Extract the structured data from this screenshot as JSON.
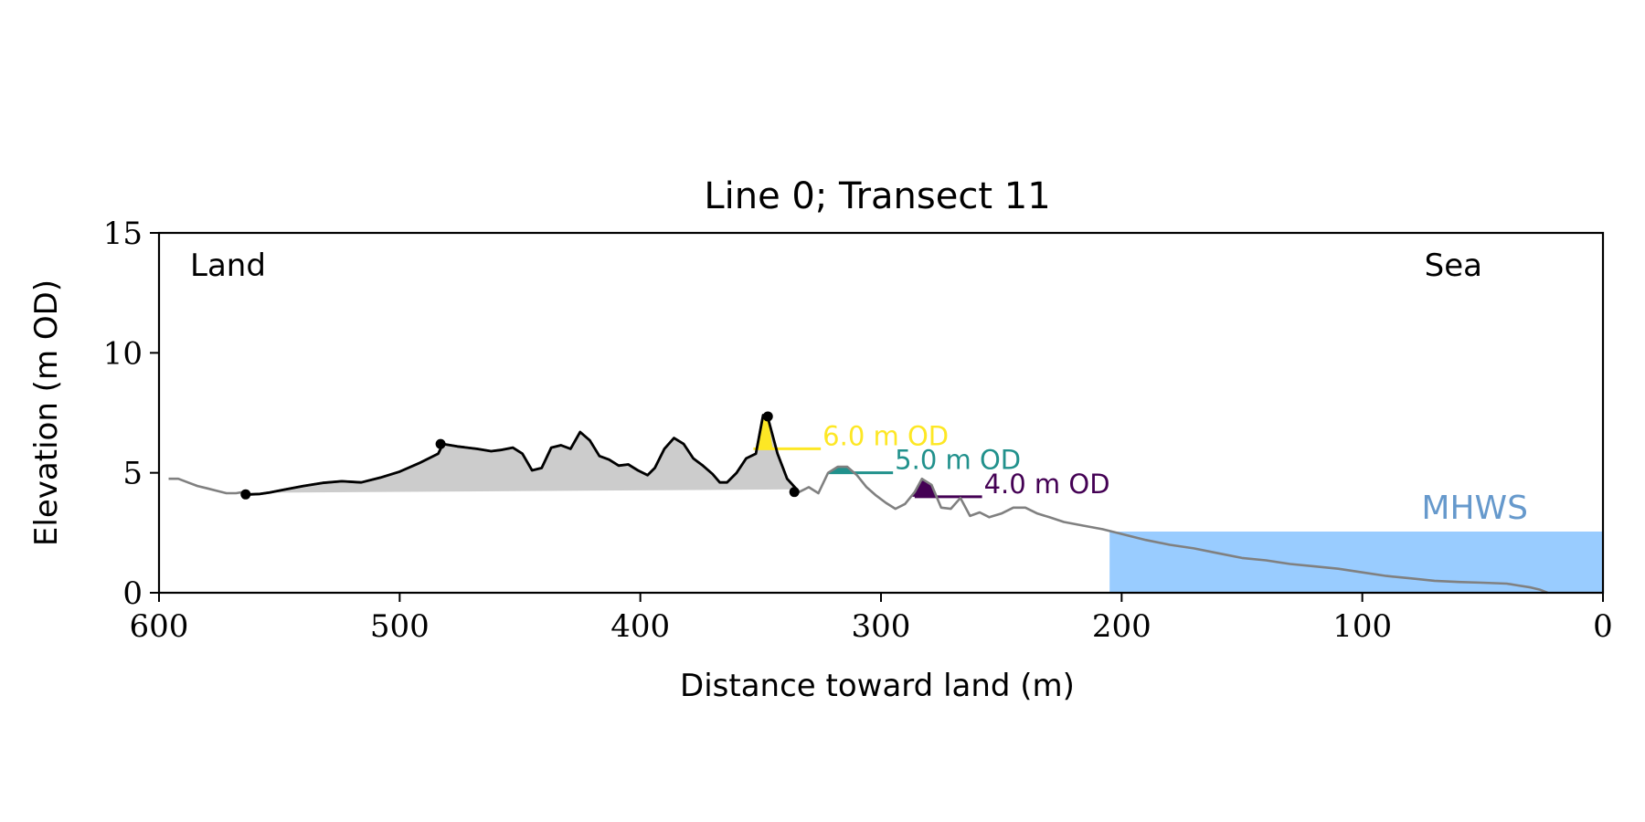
{
  "chart_data": {
    "type": "area",
    "title": "Line 0; Transect 11",
    "xlabel": "Distance toward land (m)",
    "ylabel": "Elevation (m OD)",
    "xlim": [
      600,
      0
    ],
    "ylim": [
      0,
      15
    ],
    "x_reversed": true,
    "xticks": [
      600,
      500,
      400,
      300,
      200,
      100,
      0
    ],
    "yticks": [
      0,
      5,
      10,
      15
    ],
    "grid": false,
    "corner_labels": {
      "left": "Land",
      "right": "Sea"
    },
    "mhws": {
      "label": "MHWS",
      "elevation": 2.55,
      "x_from": 205,
      "x_to": 0,
      "color": "#99ccff",
      "label_color": "#6699cc"
    },
    "profile": {
      "color": "#808080",
      "points": [
        [
          596,
          4.75
        ],
        [
          592,
          4.75
        ],
        [
          588,
          4.6
        ],
        [
          584,
          4.45
        ],
        [
          580,
          4.35
        ],
        [
          576,
          4.25
        ],
        [
          572,
          4.15
        ],
        [
          568,
          4.15
        ],
        [
          565,
          4.2
        ],
        [
          562,
          4.1
        ],
        [
          558,
          4.12
        ],
        [
          554,
          4.18
        ],
        [
          548,
          4.3
        ],
        [
          540,
          4.45
        ],
        [
          532,
          4.58
        ],
        [
          524,
          4.65
        ],
        [
          516,
          4.6
        ],
        [
          508,
          4.8
        ],
        [
          500,
          5.05
        ],
        [
          492,
          5.4
        ],
        [
          484,
          5.8
        ],
        [
          482,
          6.2
        ],
        [
          476,
          6.1
        ],
        [
          468,
          6.0
        ],
        [
          462,
          5.9
        ],
        [
          458,
          5.95
        ],
        [
          453,
          6.05
        ],
        [
          449,
          5.8
        ],
        [
          445,
          5.1
        ],
        [
          441,
          5.2
        ],
        [
          437,
          6.05
        ],
        [
          433,
          6.15
        ],
        [
          429,
          6.0
        ],
        [
          425,
          6.7
        ],
        [
          421,
          6.35
        ],
        [
          417,
          5.7
        ],
        [
          413,
          5.55
        ],
        [
          409,
          5.3
        ],
        [
          405,
          5.35
        ],
        [
          401,
          5.1
        ],
        [
          397,
          4.9
        ],
        [
          394,
          5.2
        ],
        [
          390,
          6.0
        ],
        [
          386,
          6.45
        ],
        [
          382,
          6.2
        ],
        [
          378,
          5.6
        ],
        [
          374,
          5.3
        ],
        [
          370,
          4.95
        ],
        [
          367,
          4.6
        ],
        [
          364,
          4.6
        ],
        [
          360,
          5.0
        ],
        [
          356,
          5.6
        ],
        [
          352,
          5.8
        ],
        [
          349,
          7.4
        ],
        [
          347,
          7.3
        ],
        [
          343,
          5.8
        ],
        [
          339,
          4.75
        ],
        [
          334,
          4.2
        ],
        [
          330,
          4.4
        ],
        [
          326,
          4.15
        ],
        [
          322,
          5.0
        ],
        [
          318,
          5.25
        ],
        [
          314,
          5.25
        ],
        [
          310,
          4.9
        ],
        [
          306,
          4.4
        ],
        [
          302,
          4.05
        ],
        [
          298,
          3.75
        ],
        [
          294,
          3.5
        ],
        [
          290,
          3.7
        ],
        [
          286,
          4.2
        ],
        [
          283,
          4.75
        ],
        [
          279,
          4.5
        ],
        [
          275,
          3.55
        ],
        [
          271,
          3.5
        ],
        [
          267,
          3.95
        ],
        [
          263,
          3.2
        ],
        [
          259,
          3.35
        ],
        [
          255,
          3.15
        ],
        [
          250,
          3.3
        ],
        [
          245,
          3.55
        ],
        [
          240,
          3.55
        ],
        [
          235,
          3.3
        ],
        [
          230,
          3.15
        ],
        [
          224,
          2.95
        ],
        [
          216,
          2.8
        ],
        [
          208,
          2.65
        ],
        [
          200,
          2.45
        ],
        [
          190,
          2.2
        ],
        [
          180,
          2.0
        ],
        [
          170,
          1.85
        ],
        [
          160,
          1.65
        ],
        [
          150,
          1.45
        ],
        [
          140,
          1.35
        ],
        [
          130,
          1.2
        ],
        [
          120,
          1.1
        ],
        [
          110,
          1.0
        ],
        [
          100,
          0.85
        ],
        [
          90,
          0.7
        ],
        [
          80,
          0.6
        ],
        [
          70,
          0.5
        ],
        [
          60,
          0.45
        ],
        [
          50,
          0.42
        ],
        [
          40,
          0.38
        ],
        [
          35,
          0.3
        ],
        [
          30,
          0.22
        ],
        [
          26,
          0.12
        ],
        [
          23,
          0.0
        ]
      ]
    },
    "dune_segment": {
      "x_from": 564,
      "x_to": 335,
      "color": "#000000",
      "fill": "#cccccc"
    },
    "markers": [
      [
        564,
        4.1
      ],
      [
        483,
        6.2
      ],
      [
        347,
        7.35
      ],
      [
        336,
        4.2
      ]
    ],
    "thresholds": [
      {
        "label": "6.0 m OD",
        "elevation": 6.0,
        "color": "#fde725",
        "x_from": 353,
        "x_to": 325
      },
      {
        "label": "5.0 m OD",
        "elevation": 5.0,
        "color": "#21918c",
        "x_from": 322,
        "x_to": 295
      },
      {
        "label": "4.0 m OD",
        "elevation": 4.0,
        "color": "#440154",
        "x_from": 286,
        "x_to": 258
      }
    ]
  }
}
